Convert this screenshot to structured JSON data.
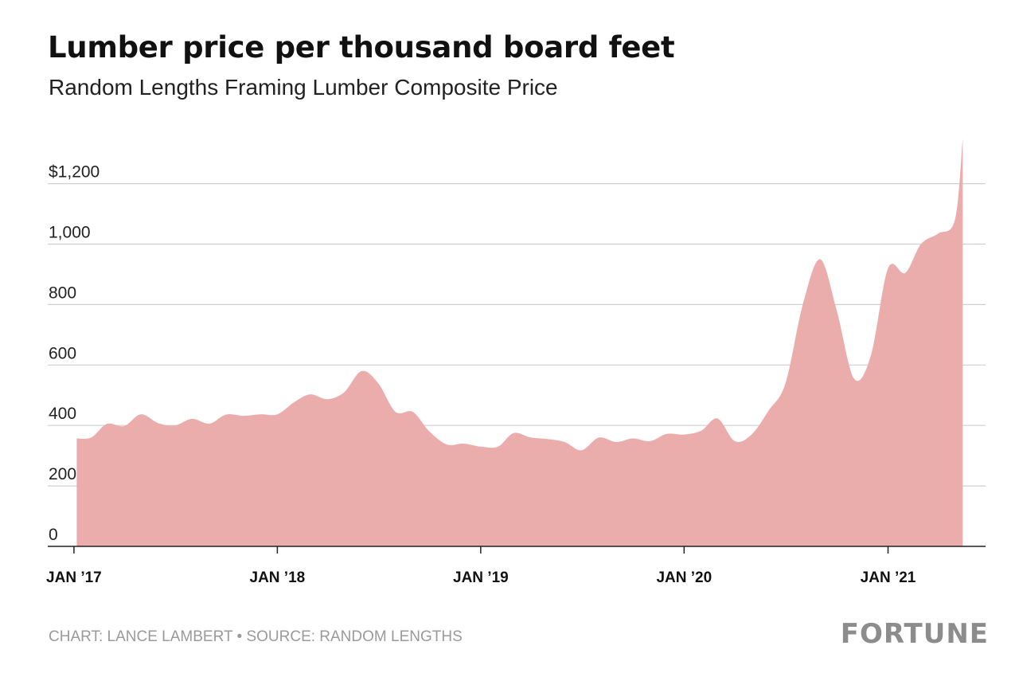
{
  "title": "Lumber price per thousand board feet",
  "subtitle": "Random Lengths Framing Lumber Composite Price",
  "footer": {
    "credit": "CHART: LANCE LAMBERT • SOURCE: RANDOM LENGTHS",
    "brand": "FORTUNE"
  },
  "colors": {
    "area_fill": "#eaadac",
    "gridline": "#cfcfcf",
    "axis": "#222222"
  },
  "chart_data": {
    "type": "area",
    "title": "Lumber price per thousand board feet",
    "subtitle": "Random Lengths Framing Lumber Composite Price",
    "xlabel": "",
    "ylabel": "",
    "ylim": [
      0,
      1350
    ],
    "xlim": [
      "2016-11-15",
      "2021-06-25"
    ],
    "grid": true,
    "y_ticks": [
      {
        "value": 0,
        "label": "0"
      },
      {
        "value": 200,
        "label": "200"
      },
      {
        "value": 400,
        "label": "400"
      },
      {
        "value": 600,
        "label": "600"
      },
      {
        "value": 800,
        "label": "800"
      },
      {
        "value": 1000,
        "label": "1,000"
      },
      {
        "value": 1200,
        "label": "$1,200"
      }
    ],
    "x_ticks": [
      {
        "value": "2017-01-01",
        "label": "JAN ’17"
      },
      {
        "value": "2018-01-01",
        "label": "JAN ’18"
      },
      {
        "value": "2019-01-01",
        "label": "JAN ’19"
      },
      {
        "value": "2020-01-01",
        "label": "JAN ’20"
      },
      {
        "value": "2021-01-01",
        "label": "JAN ’21"
      }
    ],
    "series": [
      {
        "points": [
          [
            "2017-01-06",
            357
          ],
          [
            "2017-02-01",
            360
          ],
          [
            "2017-03-01",
            405
          ],
          [
            "2017-04-01",
            398
          ],
          [
            "2017-05-01",
            437
          ],
          [
            "2017-06-01",
            408
          ],
          [
            "2017-07-01",
            400
          ],
          [
            "2017-08-01",
            422
          ],
          [
            "2017-09-01",
            406
          ],
          [
            "2017-10-01",
            436
          ],
          [
            "2017-11-01",
            432
          ],
          [
            "2017-12-01",
            437
          ],
          [
            "2018-01-01",
            437
          ],
          [
            "2018-02-01",
            478
          ],
          [
            "2018-03-01",
            503
          ],
          [
            "2018-04-01",
            487
          ],
          [
            "2018-05-01",
            510
          ],
          [
            "2018-06-01",
            580
          ],
          [
            "2018-07-01",
            540
          ],
          [
            "2018-08-01",
            445
          ],
          [
            "2018-09-01",
            445
          ],
          [
            "2018-10-01",
            380
          ],
          [
            "2018-11-01",
            337
          ],
          [
            "2018-12-01",
            340
          ],
          [
            "2019-01-01",
            330
          ],
          [
            "2019-02-01",
            330
          ],
          [
            "2019-03-01",
            375
          ],
          [
            "2019-04-01",
            360
          ],
          [
            "2019-05-01",
            355
          ],
          [
            "2019-06-01",
            345
          ],
          [
            "2019-07-01",
            318
          ],
          [
            "2019-08-01",
            360
          ],
          [
            "2019-09-01",
            345
          ],
          [
            "2019-10-01",
            357
          ],
          [
            "2019-11-01",
            348
          ],
          [
            "2019-12-01",
            372
          ],
          [
            "2020-01-01",
            370
          ],
          [
            "2020-02-01",
            383
          ],
          [
            "2020-03-01",
            423
          ],
          [
            "2020-04-01",
            348
          ],
          [
            "2020-05-01",
            370
          ],
          [
            "2020-06-01",
            450
          ],
          [
            "2020-07-01",
            540
          ],
          [
            "2020-08-01",
            800
          ],
          [
            "2020-09-01",
            950
          ],
          [
            "2020-10-01",
            780
          ],
          [
            "2020-11-01",
            555
          ],
          [
            "2020-12-01",
            630
          ],
          [
            "2021-01-01",
            920
          ],
          [
            "2021-02-01",
            905
          ],
          [
            "2021-03-01",
            1000
          ],
          [
            "2021-04-01",
            1035
          ],
          [
            "2021-05-01",
            1080
          ],
          [
            "2021-05-15",
            1350
          ]
        ]
      }
    ]
  }
}
